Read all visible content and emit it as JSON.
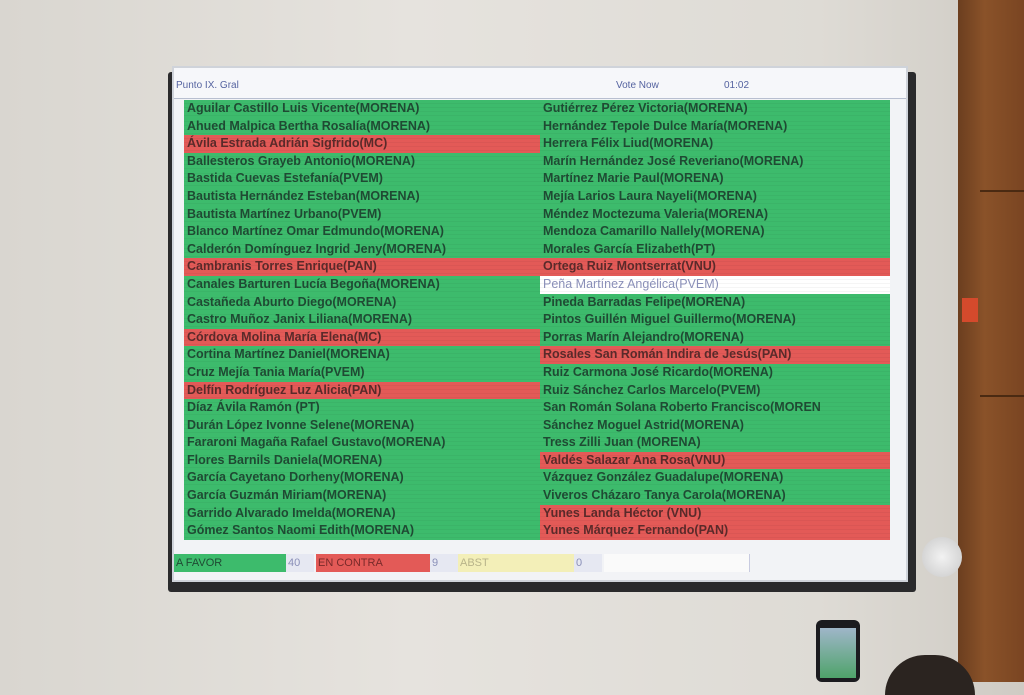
{
  "screen": {
    "title": "Punto IX. Gral",
    "mode": "Vote Now",
    "timer": "01:02"
  },
  "colors": {
    "favor": "#3dbb6c",
    "contra": "#e35a57",
    "abst": "#f3efb8",
    "none": "#ffffff"
  },
  "left_column": [
    {
      "name": "Aguilar Castillo Luis Vicente(MORENA)",
      "vote": "favor"
    },
    {
      "name": "Ahued Malpica Bertha Rosalía(MORENA)",
      "vote": "favor"
    },
    {
      "name": "Ávila Estrada Adrián Sigfrido(MC)",
      "vote": "contra"
    },
    {
      "name": "Ballesteros Grayeb Antonio(MORENA)",
      "vote": "favor"
    },
    {
      "name": "Bastida Cuevas Estefanía(PVEM)",
      "vote": "favor"
    },
    {
      "name": "Bautista Hernández Esteban(MORENA)",
      "vote": "favor"
    },
    {
      "name": "Bautista Martínez Urbano(PVEM)",
      "vote": "favor"
    },
    {
      "name": "Blanco Martínez Omar Edmundo(MORENA)",
      "vote": "favor"
    },
    {
      "name": "Calderón Domínguez Ingrid Jeny(MORENA)",
      "vote": "favor"
    },
    {
      "name": "Cambranis Torres Enrique(PAN)",
      "vote": "contra"
    },
    {
      "name": "Canales Barturen Lucía Begoña(MORENA)",
      "vote": "favor"
    },
    {
      "name": "Castañeda Aburto Diego(MORENA)",
      "vote": "favor"
    },
    {
      "name": "Castro Muñoz Janix Liliana(MORENA)",
      "vote": "favor"
    },
    {
      "name": "Córdova Molina María Elena(MC)",
      "vote": "contra"
    },
    {
      "name": "Cortina Martínez Daniel(MORENA)",
      "vote": "favor"
    },
    {
      "name": "Cruz Mejía Tania María(PVEM)",
      "vote": "favor"
    },
    {
      "name": "Delfín Rodríguez Luz Alicia(PAN)",
      "vote": "contra"
    },
    {
      "name": "Díaz Ávila Ramón      (PT)",
      "vote": "favor"
    },
    {
      "name": "Durán López Ivonne Selene(MORENA)",
      "vote": "favor"
    },
    {
      "name": "Fararoni Magaña Rafael Gustavo(MORENA)",
      "vote": "favor"
    },
    {
      "name": "Flores Barnils Daniela(MORENA)",
      "vote": "favor"
    },
    {
      "name": "García Cayetano Dorheny(MORENA)",
      "vote": "favor"
    },
    {
      "name": "García Guzmán Miriam(MORENA)",
      "vote": "favor"
    },
    {
      "name": "Garrido Alvarado Imelda(MORENA)",
      "vote": "favor"
    },
    {
      "name": "Gómez Santos Naomi Edith(MORENA)",
      "vote": "favor"
    }
  ],
  "right_column": [
    {
      "name": "Gutiérrez Pérez Victoria(MORENA)",
      "vote": "favor"
    },
    {
      "name": "Hernández Tepole Dulce María(MORENA)",
      "vote": "favor"
    },
    {
      "name": "Herrera Félix Liud(MORENA)",
      "vote": "favor"
    },
    {
      "name": "Marín Hernández José Reveriano(MORENA)",
      "vote": "favor"
    },
    {
      "name": "Martínez Marie Paul(MORENA)",
      "vote": "favor"
    },
    {
      "name": "Mejía Larios Laura Nayeli(MORENA)",
      "vote": "favor"
    },
    {
      "name": "Méndez Moctezuma Valeria(MORENA)",
      "vote": "favor"
    },
    {
      "name": "Mendoza Camarillo Nallely(MORENA)",
      "vote": "favor"
    },
    {
      "name": "Morales García Elizabeth(PT)",
      "vote": "favor"
    },
    {
      "name": "Ortega Ruiz Montserrat(VNU)",
      "vote": "contra"
    },
    {
      "name": "Peña Martínez Angélica(PVEM)",
      "vote": "none"
    },
    {
      "name": "Pineda Barradas Felipe(MORENA)",
      "vote": "favor"
    },
    {
      "name": "Pintos Guillén Miguel Guillermo(MORENA)",
      "vote": "favor"
    },
    {
      "name": "Porras Marín Alejandro(MORENA)",
      "vote": "favor"
    },
    {
      "name": "Rosales San Román Indira de Jesús(PAN)",
      "vote": "contra"
    },
    {
      "name": "Ruiz Carmona José Ricardo(MORENA)",
      "vote": "favor"
    },
    {
      "name": "Ruiz Sánchez Carlos Marcelo(PVEM)",
      "vote": "favor"
    },
    {
      "name": "San Román Solana Roberto Francisco(MOREN",
      "vote": "favor"
    },
    {
      "name": "Sánchez Moguel Astrid(MORENA)",
      "vote": "favor"
    },
    {
      "name": "Tress Zilli Juan (MORENA)",
      "vote": "favor"
    },
    {
      "name": "Valdés Salazar Ana Rosa(VNU)",
      "vote": "contra"
    },
    {
      "name": "Vázquez González Guadalupe(MORENA)",
      "vote": "favor"
    },
    {
      "name": "Viveros Cházaro Tanya Carola(MORENA)",
      "vote": "favor"
    },
    {
      "name": "Yunes Landa Héctor  (VNU)",
      "vote": "contra"
    },
    {
      "name": "Yunes Márquez Fernando(PAN)",
      "vote": "contra"
    }
  ],
  "totals": {
    "favor_label": "A FAVOR",
    "favor_count": "40",
    "contra_label": "EN CONTRA",
    "contra_count": "9",
    "abst_label": "ABST",
    "abst_count": "0"
  }
}
